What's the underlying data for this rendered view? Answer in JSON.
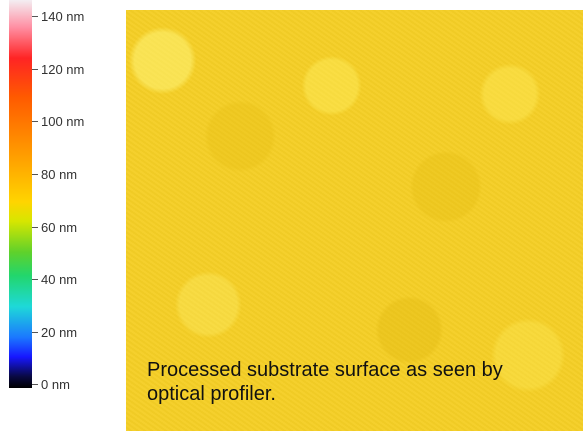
{
  "scale": {
    "labels": [
      "140 nm",
      "120 nm",
      "100 nm",
      "80 nm",
      "60 nm",
      "40 nm",
      "20 nm",
      "0 nm"
    ]
  },
  "caption": "Processed substrate surface as seen by optical profiler."
}
